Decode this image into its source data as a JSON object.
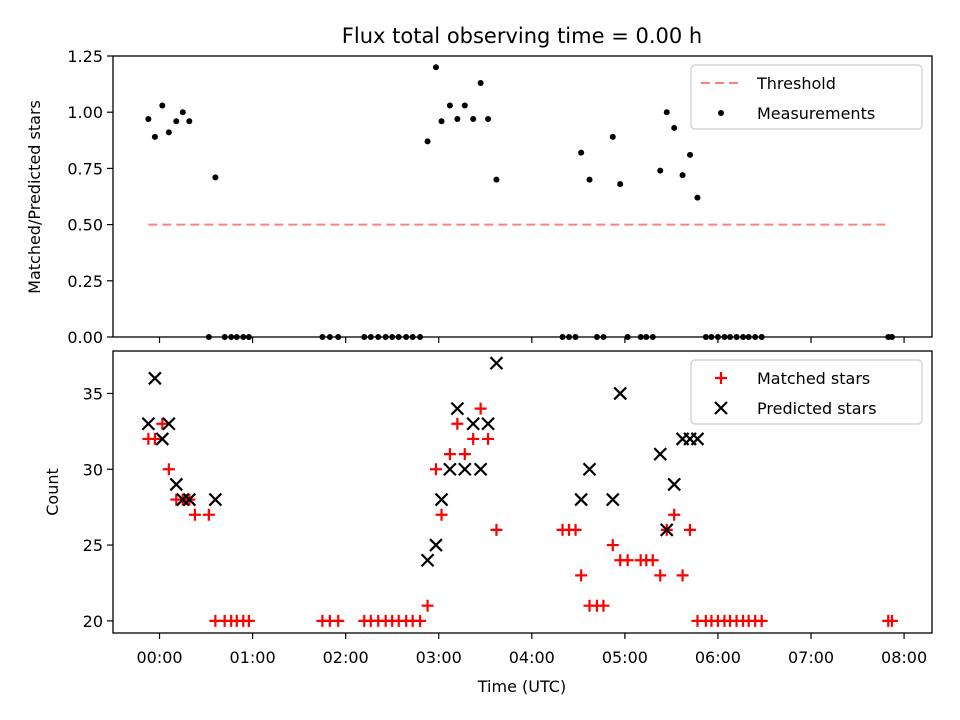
{
  "title": "Flux total observing time = 0.00 h",
  "chart_data": [
    {
      "type": "scatter",
      "ylabel": "Matched/Predicted stars",
      "xlabel": "",
      "xlim": [
        -0.5,
        8.3
      ],
      "ylim": [
        0,
        1.25
      ],
      "yticks": [
        0.0,
        0.25,
        0.5,
        0.75,
        1.0,
        1.25
      ],
      "ytick_labels": [
        "0.00",
        "0.25",
        "0.50",
        "0.75",
        "1.00",
        "1.25"
      ],
      "threshold": {
        "name": "Threshold",
        "value": 0.5,
        "x_range": [
          -0.12,
          7.85
        ],
        "color": "#ff7f7f",
        "style": "dashed"
      },
      "series": [
        {
          "name": "Measurements",
          "color": "#000000",
          "marker": "dot",
          "points": [
            [
              -0.12,
              0.97
            ],
            [
              -0.05,
              0.89
            ],
            [
              0.03,
              1.03
            ],
            [
              0.1,
              0.91
            ],
            [
              0.18,
              0.96
            ],
            [
              0.25,
              1.0
            ],
            [
              0.32,
              0.96
            ],
            [
              0.6,
              0.71
            ],
            [
              0.53,
              0.0
            ],
            [
              0.7,
              0.0
            ],
            [
              0.77,
              0.0
            ],
            [
              0.83,
              0.0
            ],
            [
              0.9,
              0.0
            ],
            [
              0.96,
              0.0
            ],
            [
              1.75,
              0.0
            ],
            [
              1.83,
              0.0
            ],
            [
              1.92,
              0.0
            ],
            [
              2.2,
              0.0
            ],
            [
              2.27,
              0.0
            ],
            [
              2.35,
              0.0
            ],
            [
              2.43,
              0.0
            ],
            [
              2.5,
              0.0
            ],
            [
              2.57,
              0.0
            ],
            [
              2.65,
              0.0
            ],
            [
              2.72,
              0.0
            ],
            [
              2.8,
              0.0
            ],
            [
              2.88,
              0.87
            ],
            [
              2.97,
              1.2
            ],
            [
              3.03,
              0.96
            ],
            [
              3.12,
              1.03
            ],
            [
              3.2,
              0.97
            ],
            [
              3.28,
              1.03
            ],
            [
              3.37,
              0.97
            ],
            [
              3.45,
              1.13
            ],
            [
              3.53,
              0.97
            ],
            [
              3.62,
              0.7
            ],
            [
              4.33,
              0.0
            ],
            [
              4.4,
              0.0
            ],
            [
              4.47,
              0.0
            ],
            [
              4.53,
              0.82
            ],
            [
              4.62,
              0.7
            ],
            [
              4.7,
              0.0
            ],
            [
              4.77,
              0.0
            ],
            [
              4.87,
              0.89
            ],
            [
              4.95,
              0.68
            ],
            [
              5.03,
              0.0
            ],
            [
              5.17,
              0.0
            ],
            [
              5.23,
              0.0
            ],
            [
              5.3,
              0.0
            ],
            [
              5.38,
              0.74
            ],
            [
              5.45,
              1.0
            ],
            [
              5.53,
              0.93
            ],
            [
              5.62,
              0.72
            ],
            [
              5.7,
              0.81
            ],
            [
              5.78,
              0.62
            ],
            [
              5.87,
              0.0
            ],
            [
              5.93,
              0.0
            ],
            [
              6.0,
              0.0
            ],
            [
              6.07,
              0.0
            ],
            [
              6.13,
              0.0
            ],
            [
              6.2,
              0.0
            ],
            [
              6.27,
              0.0
            ],
            [
              6.33,
              0.0
            ],
            [
              6.4,
              0.0
            ],
            [
              6.47,
              0.0
            ],
            [
              7.83,
              0.0
            ],
            [
              7.87,
              0.0
            ]
          ]
        }
      ],
      "legend": {
        "placement": "top-right",
        "entries": [
          "Threshold",
          "Measurements"
        ]
      }
    },
    {
      "type": "scatter",
      "xlabel": "Time (UTC)",
      "ylabel": "Count",
      "xlim": [
        -0.5,
        8.3
      ],
      "ylim": [
        19.2,
        37.8
      ],
      "xticks": [
        0,
        1,
        2,
        3,
        4,
        5,
        6,
        7,
        8
      ],
      "xtick_labels": [
        "00:00",
        "01:00",
        "02:00",
        "03:00",
        "04:00",
        "05:00",
        "06:00",
        "07:00",
        "08:00"
      ],
      "yticks": [
        20,
        25,
        30,
        35
      ],
      "ytick_labels": [
        "20",
        "25",
        "30",
        "35"
      ],
      "series": [
        {
          "name": "Matched stars",
          "color": "#ff0000",
          "marker": "plus",
          "points": [
            [
              -0.12,
              32
            ],
            [
              -0.05,
              32
            ],
            [
              0.03,
              33
            ],
            [
              0.1,
              30
            ],
            [
              0.18,
              28
            ],
            [
              0.25,
              28
            ],
            [
              0.32,
              28
            ],
            [
              0.38,
              27
            ],
            [
              0.53,
              27
            ],
            [
              0.6,
              20
            ],
            [
              0.7,
              20
            ],
            [
              0.77,
              20
            ],
            [
              0.83,
              20
            ],
            [
              0.9,
              20
            ],
            [
              0.96,
              20
            ],
            [
              1.75,
              20
            ],
            [
              1.83,
              20
            ],
            [
              1.92,
              20
            ],
            [
              2.2,
              20
            ],
            [
              2.27,
              20
            ],
            [
              2.35,
              20
            ],
            [
              2.43,
              20
            ],
            [
              2.5,
              20
            ],
            [
              2.57,
              20
            ],
            [
              2.65,
              20
            ],
            [
              2.72,
              20
            ],
            [
              2.8,
              20
            ],
            [
              2.88,
              21
            ],
            [
              2.97,
              30
            ],
            [
              3.03,
              27
            ],
            [
              3.12,
              31
            ],
            [
              3.2,
              33
            ],
            [
              3.28,
              31
            ],
            [
              3.37,
              32
            ],
            [
              3.45,
              34
            ],
            [
              3.53,
              32
            ],
            [
              3.62,
              26
            ],
            [
              4.33,
              26
            ],
            [
              4.4,
              26
            ],
            [
              4.47,
              26
            ],
            [
              4.53,
              23
            ],
            [
              4.62,
              21
            ],
            [
              4.7,
              21
            ],
            [
              4.77,
              21
            ],
            [
              4.87,
              25
            ],
            [
              4.95,
              24
            ],
            [
              5.03,
              24
            ],
            [
              5.17,
              24
            ],
            [
              5.23,
              24
            ],
            [
              5.3,
              24
            ],
            [
              5.38,
              23
            ],
            [
              5.45,
              26
            ],
            [
              5.53,
              27
            ],
            [
              5.62,
              23
            ],
            [
              5.7,
              26
            ],
            [
              5.78,
              20
            ],
            [
              5.87,
              20
            ],
            [
              5.93,
              20
            ],
            [
              6.0,
              20
            ],
            [
              6.07,
              20
            ],
            [
              6.13,
              20
            ],
            [
              6.2,
              20
            ],
            [
              6.27,
              20
            ],
            [
              6.33,
              20
            ],
            [
              6.4,
              20
            ],
            [
              6.47,
              20
            ],
            [
              7.83,
              20
            ],
            [
              7.87,
              20
            ]
          ]
        },
        {
          "name": "Predicted stars",
          "color": "#000000",
          "marker": "x",
          "points": [
            [
              -0.12,
              33
            ],
            [
              -0.05,
              36
            ],
            [
              0.03,
              32
            ],
            [
              0.1,
              33
            ],
            [
              0.18,
              29
            ],
            [
              0.25,
              28
            ],
            [
              0.32,
              28
            ],
            [
              0.6,
              28
            ],
            [
              2.88,
              24
            ],
            [
              2.97,
              25
            ],
            [
              3.03,
              28
            ],
            [
              3.12,
              30
            ],
            [
              3.2,
              34
            ],
            [
              3.28,
              30
            ],
            [
              3.37,
              33
            ],
            [
              3.45,
              30
            ],
            [
              3.53,
              33
            ],
            [
              3.62,
              37
            ],
            [
              4.53,
              28
            ],
            [
              4.62,
              30
            ],
            [
              4.87,
              28
            ],
            [
              4.95,
              35
            ],
            [
              5.38,
              31
            ],
            [
              5.45,
              26
            ],
            [
              5.53,
              29
            ],
            [
              5.62,
              32
            ],
            [
              5.7,
              32
            ],
            [
              5.78,
              32
            ]
          ]
        }
      ],
      "legend": {
        "placement": "top-right",
        "entries": [
          "Matched stars",
          "Predicted stars"
        ]
      }
    }
  ]
}
